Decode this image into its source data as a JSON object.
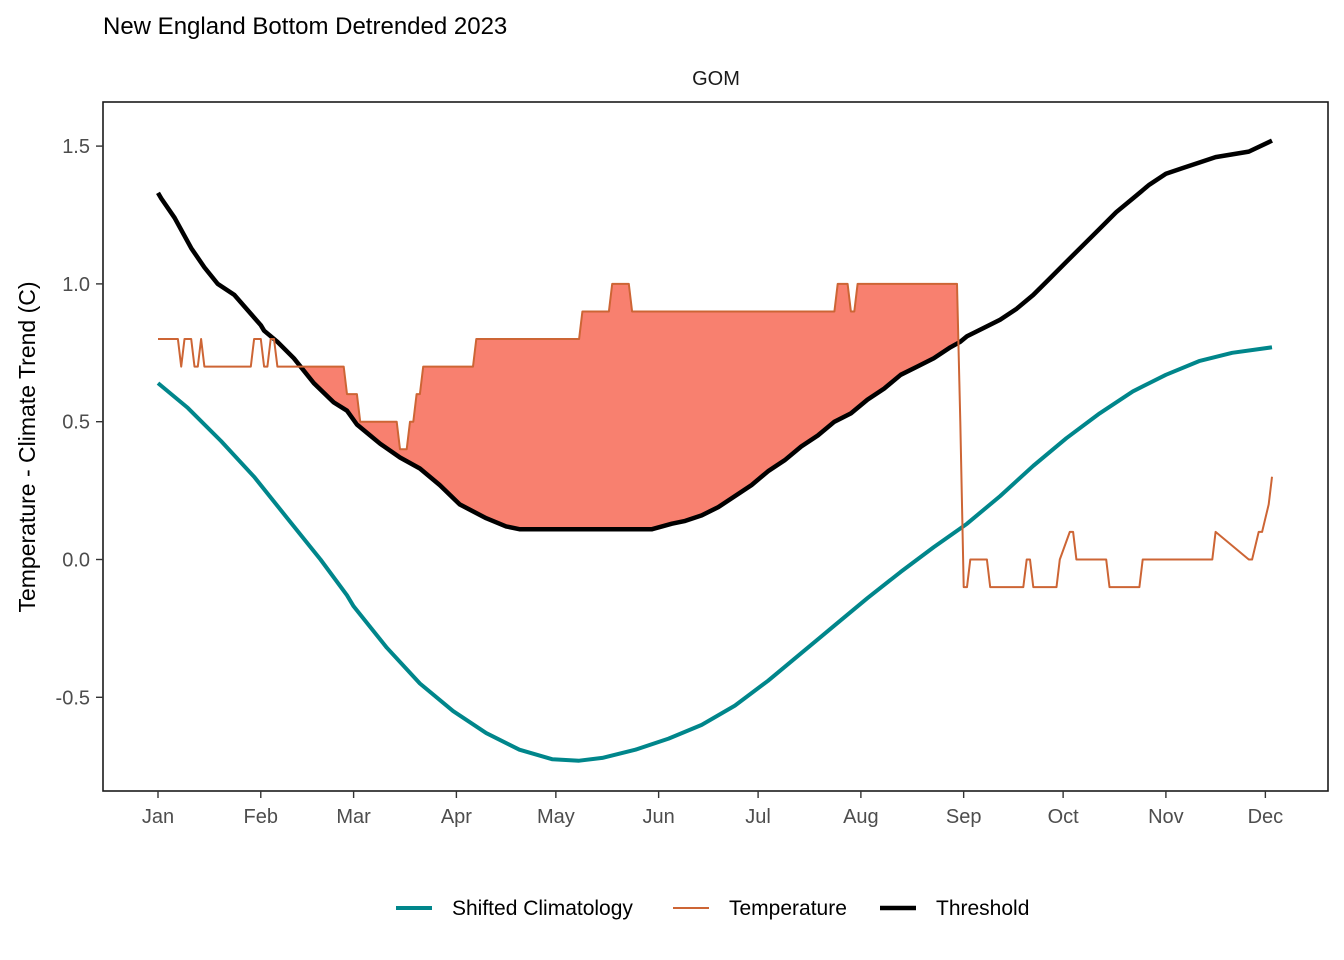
{
  "chart_data": {
    "type": "line",
    "title": "New England Bottom Detrended 2023",
    "facet": "GOM",
    "xlabel": "",
    "ylabel": "Temperature - Climate Trend (C)",
    "ylim": [
      -0.84,
      1.66
    ],
    "y_ticks": [
      {
        "value": 1.5,
        "label": "1.5"
      },
      {
        "value": 1.0,
        "label": "1.0"
      },
      {
        "value": 0.5,
        "label": "0.5"
      },
      {
        "value": 0.0,
        "label": "0.0"
      },
      {
        "value": -0.5,
        "label": "-0.5"
      }
    ],
    "x_ticks": [
      {
        "day": 1,
        "label": "Jan"
      },
      {
        "day": 32,
        "label": "Feb"
      },
      {
        "day": 60,
        "label": "Mar"
      },
      {
        "day": 91,
        "label": "Apr"
      },
      {
        "day": 121,
        "label": "May"
      },
      {
        "day": 152,
        "label": "Jun"
      },
      {
        "day": 182,
        "label": "Jul"
      },
      {
        "day": 213,
        "label": "Aug"
      },
      {
        "day": 244,
        "label": "Sep"
      },
      {
        "day": 274,
        "label": "Oct"
      },
      {
        "day": 305,
        "label": "Nov"
      },
      {
        "day": 335,
        "label": "Dec"
      }
    ],
    "grid": false,
    "legend_position": "bottom",
    "fill_color": "#f8806f",
    "series": [
      {
        "name": "Shifted Climatology",
        "color": "#00868b",
        "x": [
          1,
          10,
          20,
          30,
          40,
          50,
          58,
          60,
          70,
          80,
          90,
          100,
          110,
          120,
          128,
          135,
          145,
          155,
          165,
          175,
          185,
          195,
          205,
          215,
          225,
          235,
          245,
          255,
          265,
          275,
          285,
          295,
          305,
          315,
          325,
          337
        ],
        "y": [
          0.64,
          0.55,
          0.43,
          0.3,
          0.15,
          0.0,
          -0.13,
          -0.17,
          -0.32,
          -0.45,
          -0.55,
          -0.63,
          -0.69,
          -0.725,
          -0.73,
          -0.72,
          -0.69,
          -0.65,
          -0.6,
          -0.53,
          -0.44,
          -0.34,
          -0.24,
          -0.14,
          -0.045,
          0.045,
          0.13,
          0.23,
          0.34,
          0.44,
          0.53,
          0.61,
          0.67,
          0.72,
          0.75,
          0.77
        ]
      },
      {
        "name": "Temperature",
        "color": "#cd6535",
        "x": [
          1,
          7,
          8,
          9,
          11,
          12,
          13,
          14,
          15,
          16,
          17,
          29,
          30,
          32,
          33,
          34,
          35,
          36,
          37,
          39,
          40,
          57,
          58,
          61,
          62,
          64,
          65,
          73,
          74,
          76,
          77,
          78,
          79,
          80,
          81,
          82,
          83,
          96,
          97,
          128,
          129,
          137,
          138,
          143,
          144,
          205,
          206,
          209,
          210,
          211,
          212,
          242,
          243,
          244,
          245,
          246,
          247,
          251,
          252,
          262,
          263,
          264,
          265,
          272,
          273,
          276,
          277,
          278,
          279,
          287,
          288,
          297,
          298,
          319,
          320,
          330,
          331,
          333,
          334,
          336,
          337
        ],
        "y": [
          0.8,
          0.8,
          0.7,
          0.8,
          0.8,
          0.7,
          0.7,
          0.8,
          0.7,
          0.7,
          0.7,
          0.7,
          0.8,
          0.8,
          0.7,
          0.7,
          0.8,
          0.8,
          0.7,
          0.7,
          0.7,
          0.7,
          0.6,
          0.6,
          0.5,
          0.5,
          0.5,
          0.5,
          0.4,
          0.4,
          0.5,
          0.5,
          0.6,
          0.6,
          0.7,
          0.7,
          0.7,
          0.7,
          0.8,
          0.8,
          0.9,
          0.9,
          1.0,
          1.0,
          0.9,
          0.9,
          1.0,
          1.0,
          0.9,
          0.9,
          1.0,
          1.0,
          0.5,
          -0.1,
          -0.1,
          0.0,
          0.0,
          0.0,
          -0.1,
          -0.1,
          0.0,
          0.0,
          -0.1,
          -0.1,
          0.0,
          0.1,
          0.1,
          0.0,
          0.0,
          0.0,
          -0.1,
          -0.1,
          0.0,
          0.0,
          0.1,
          0.0,
          0.0,
          0.1,
          0.1,
          0.2,
          0.3
        ]
      },
      {
        "name": "Threshold",
        "color": "#000000",
        "x": [
          1,
          2,
          6,
          11,
          15,
          19,
          24,
          32,
          33,
          37,
          42,
          48,
          54,
          58,
          61,
          65,
          68,
          74,
          80,
          86,
          92,
          100,
          106,
          110,
          120,
          130,
          140,
          150,
          153,
          156,
          160,
          165,
          170,
          175,
          180,
          185,
          190,
          195,
          200,
          205,
          210,
          215,
          220,
          225,
          230,
          235,
          240,
          243,
          245,
          250,
          255,
          260,
          265,
          270,
          275,
          280,
          285,
          290,
          295,
          300,
          305,
          310,
          315,
          320,
          325,
          330,
          337
        ],
        "y": [
          1.33,
          1.31,
          1.24,
          1.13,
          1.06,
          1.0,
          0.96,
          0.85,
          0.83,
          0.79,
          0.73,
          0.64,
          0.57,
          0.54,
          0.49,
          0.45,
          0.42,
          0.37,
          0.33,
          0.27,
          0.2,
          0.15,
          0.12,
          0.11,
          0.11,
          0.11,
          0.11,
          0.11,
          0.12,
          0.13,
          0.14,
          0.16,
          0.19,
          0.23,
          0.27,
          0.32,
          0.36,
          0.41,
          0.45,
          0.5,
          0.53,
          0.58,
          0.62,
          0.67,
          0.7,
          0.73,
          0.77,
          0.79,
          0.81,
          0.84,
          0.87,
          0.91,
          0.96,
          1.02,
          1.08,
          1.14,
          1.2,
          1.26,
          1.31,
          1.36,
          1.4,
          1.42,
          1.44,
          1.46,
          1.47,
          1.48,
          1.52
        ]
      }
    ]
  }
}
